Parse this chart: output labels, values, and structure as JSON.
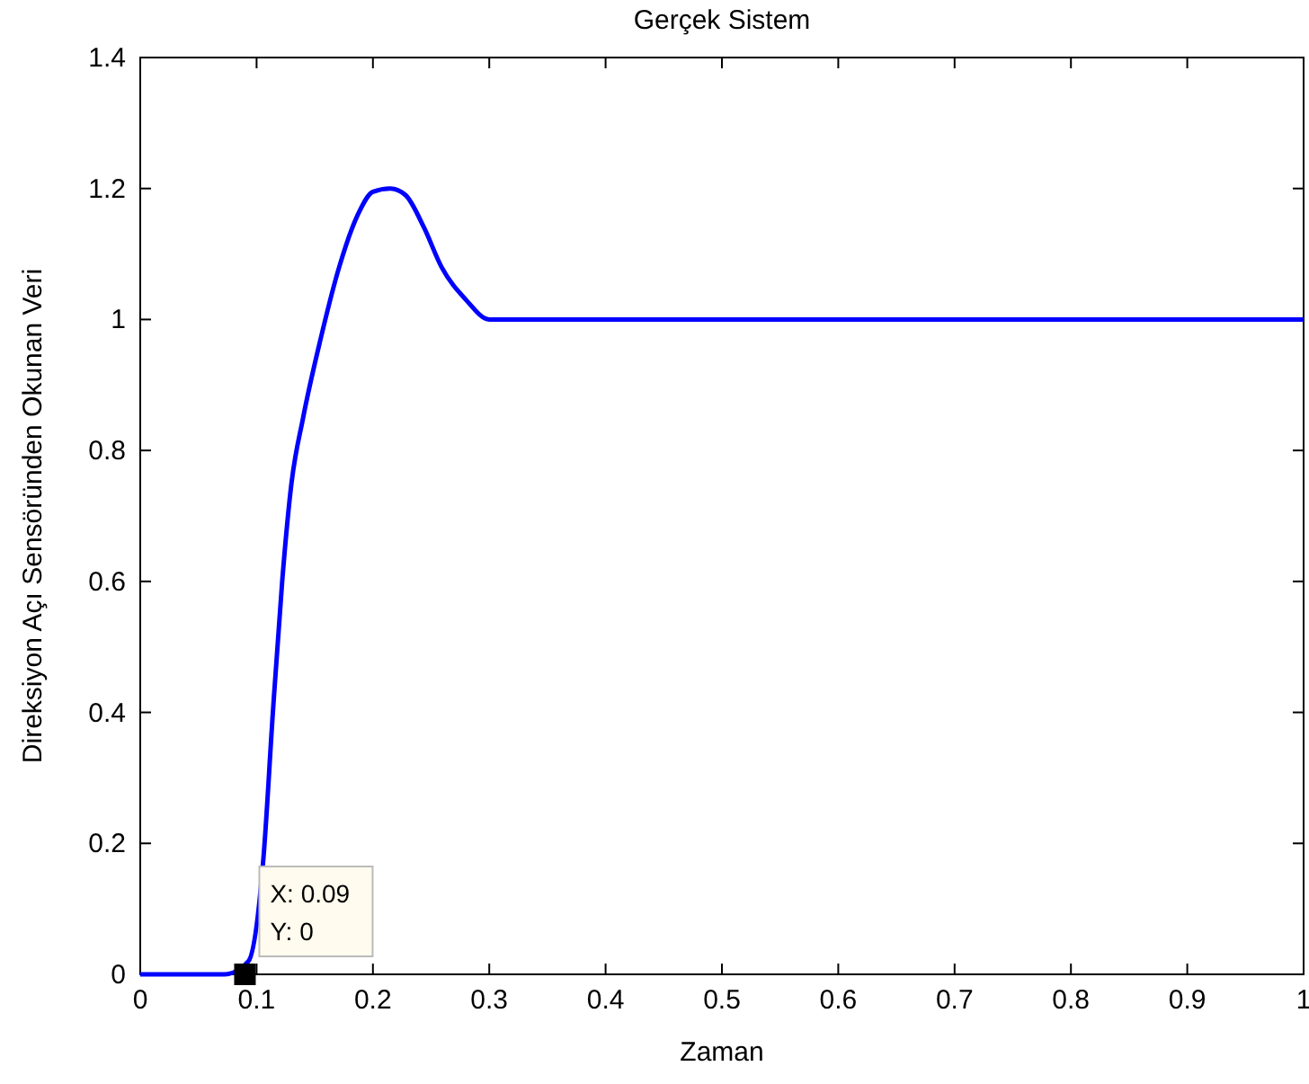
{
  "chart_data": {
    "type": "line",
    "title": "Gerçek Sistem",
    "xlabel": "Zaman",
    "ylabel": "Direksiyon Açı Sensöründen Okunan Veri",
    "x": [
      0,
      0.0725,
      0.093,
      0.106,
      0.114,
      0.122,
      0.13,
      0.14,
      0.155,
      0.171,
      0.187,
      0.2,
      0.215,
      0.228,
      0.244,
      0.259,
      0.28,
      0.3,
      0.347,
      1
    ],
    "series": [
      {
        "color": "#0000ff",
        "values": [
          0,
          0,
          0.02,
          0.18,
          0.4,
          0.6,
          0.75,
          0.85,
          0.97,
          1.08,
          1.16,
          1.195,
          1.2,
          1.19,
          1.14,
          1.08,
          1.03,
          1.0,
          1.0,
          1.0
        ]
      }
    ],
    "xlim": [
      0,
      1
    ],
    "ylim": [
      0,
      1.4
    ],
    "xticks": [
      0,
      0.1,
      0.2,
      0.3,
      0.4,
      0.5,
      0.6,
      0.7,
      0.8,
      0.9,
      1
    ],
    "yticks": [
      0,
      0.2,
      0.4,
      0.6,
      0.8,
      1,
      1.2,
      1.4
    ],
    "annotations": [
      {
        "text": "X: 0.09\nY: 0",
        "x": 0.09,
        "y": 0
      }
    ],
    "grid": false,
    "marker": "none",
    "line_style": "solid"
  }
}
